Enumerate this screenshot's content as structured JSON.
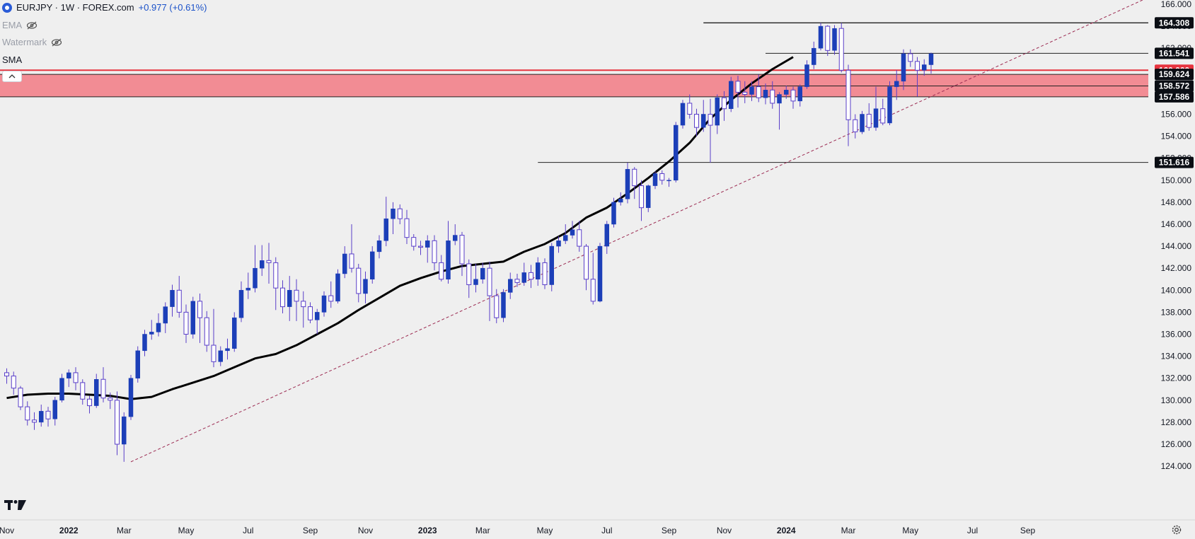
{
  "header": {
    "symbol": "EURJPY · 1W · FOREX.com",
    "change": "+0.977 (+0.61%)",
    "indicators": [
      {
        "label": "EMA"
      },
      {
        "label": "Watermark"
      },
      {
        "label": "SMA"
      }
    ]
  },
  "colors": {
    "background": "#efefef",
    "candle": "#1c3fb8",
    "zone": "#f28c94",
    "zone_label": "#e6343f",
    "sma": "#000000",
    "trendline": "#9c2b52",
    "label_bg": "#0b0e14"
  },
  "chart_data": {
    "type": "candlestick",
    "symbol": "EURJPY",
    "interval": "1W",
    "ylim": [
      123,
      166
    ],
    "y_ticks": [
      "124.000",
      "126.000",
      "128.000",
      "130.000",
      "132.000",
      "134.000",
      "136.000",
      "138.000",
      "140.000",
      "142.000",
      "144.000",
      "146.000",
      "148.000",
      "150.000",
      "152.000",
      "154.000",
      "156.000",
      "158.000",
      "160.000",
      "162.000",
      "164.000",
      "166.000"
    ],
    "x_ticks": [
      "Nov",
      "2022",
      "Mar",
      "May",
      "Jul",
      "Sep",
      "Nov",
      "2023",
      "Mar",
      "May",
      "Jul",
      "Sep",
      "Nov",
      "2024",
      "Mar",
      "May",
      "Jul",
      "Sep"
    ],
    "x_tick_weeks": [
      0,
      9,
      17,
      26,
      35,
      44,
      52,
      61,
      69,
      78,
      87,
      96,
      104,
      113,
      122,
      131,
      140,
      148
    ],
    "level_labels": [
      "164.308",
      "161.541",
      "160.000",
      "159.624",
      "158.572",
      "157.586",
      "151.616"
    ],
    "horizontal_levels": [
      {
        "price": 164.308,
        "from_week": 101
      },
      {
        "price": 161.541,
        "from_week": 110
      },
      {
        "price": 158.572,
        "from_week": 108
      },
      {
        "price": 151.616,
        "from_week": 77
      }
    ],
    "resistance_zone": {
      "from": 157.586,
      "to": 159.624,
      "line": 160.0
    },
    "trendline": {
      "points": [
        [
          18,
          124.4
        ],
        [
          69,
          139.0
        ]
      ],
      "style": "dashed"
    },
    "sma": [
      [
        0,
        130.2
      ],
      [
        3,
        130.5
      ],
      [
        6,
        130.6
      ],
      [
        9,
        130.6
      ],
      [
        12,
        130.5
      ],
      [
        15,
        130.4
      ],
      [
        18,
        130.1
      ],
      [
        21,
        130.3
      ],
      [
        24,
        131.0
      ],
      [
        27,
        131.6
      ],
      [
        30,
        132.2
      ],
      [
        33,
        133.0
      ],
      [
        36,
        133.8
      ],
      [
        39,
        134.2
      ],
      [
        42,
        135.0
      ],
      [
        45,
        136.0
      ],
      [
        48,
        137.0
      ],
      [
        51,
        138.2
      ],
      [
        54,
        139.3
      ],
      [
        57,
        140.4
      ],
      [
        60,
        141.1
      ],
      [
        63,
        141.7
      ],
      [
        66,
        142.2
      ],
      [
        69,
        142.4
      ],
      [
        72,
        142.6
      ],
      [
        75,
        143.5
      ],
      [
        78,
        144.2
      ],
      [
        81,
        145.2
      ],
      [
        84,
        146.6
      ],
      [
        87,
        147.5
      ],
      [
        90,
        148.8
      ],
      [
        93,
        150.2
      ],
      [
        96,
        151.7
      ],
      [
        99,
        153.4
      ],
      [
        102,
        155.6
      ],
      [
        105,
        157.3
      ],
      [
        108,
        158.8
      ],
      [
        111,
        160.1
      ],
      [
        114,
        161.2
      ]
    ],
    "candles": [
      [
        132.5,
        132.2,
        132.9,
        131.5
      ],
      [
        132.2,
        131.1,
        132.6,
        130.5
      ],
      [
        131.1,
        129.4,
        131.3,
        129.1
      ],
      [
        129.4,
        128.2,
        129.9,
        127.7
      ],
      [
        128.2,
        128.0,
        128.9,
        127.3
      ],
      [
        128.0,
        129.0,
        129.6,
        127.6
      ],
      [
        129.0,
        128.3,
        129.4,
        127.6
      ],
      [
        128.3,
        130.0,
        130.3,
        127.7
      ],
      [
        130.0,
        132.0,
        132.4,
        129.8
      ],
      [
        132.0,
        132.5,
        132.8,
        131.2
      ],
      [
        132.5,
        131.6,
        133.0,
        130.9
      ],
      [
        131.6,
        130.1,
        131.9,
        129.6
      ],
      [
        130.1,
        129.5,
        130.4,
        128.8
      ],
      [
        129.5,
        131.9,
        132.4,
        129.3
      ],
      [
        131.9,
        130.2,
        133.0,
        129.8
      ],
      [
        130.2,
        130.0,
        130.7,
        129.2
      ],
      [
        130.0,
        126.0,
        130.8,
        125.0
      ],
      [
        126.0,
        128.5,
        128.9,
        124.4
      ],
      [
        128.5,
        132.0,
        132.3,
        128.2
      ],
      [
        132.0,
        134.5,
        134.9,
        131.6
      ],
      [
        134.5,
        136.0,
        136.4,
        134.0
      ],
      [
        136.0,
        136.2,
        137.3,
        135.5
      ],
      [
        136.2,
        137.0,
        137.9,
        135.8
      ],
      [
        137.0,
        138.5,
        138.9,
        136.1
      ],
      [
        138.5,
        140.0,
        140.5,
        137.6
      ],
      [
        140.0,
        138.0,
        141.3,
        137.5
      ],
      [
        138.0,
        136.0,
        138.7,
        135.2
      ],
      [
        136.0,
        139.0,
        139.4,
        135.6
      ],
      [
        139.0,
        137.5,
        139.7,
        135.2
      ],
      [
        137.5,
        135.0,
        138.1,
        134.4
      ],
      [
        135.0,
        133.5,
        138.3,
        133.0
      ],
      [
        133.5,
        134.5,
        134.9,
        133.1
      ],
      [
        134.5,
        134.7,
        135.6,
        133.7
      ],
      [
        134.7,
        137.5,
        138.0,
        134.4
      ],
      [
        137.5,
        140.0,
        140.8,
        137.1
      ],
      [
        140.0,
        140.2,
        141.6,
        139.2
      ],
      [
        140.2,
        142.0,
        144.1,
        139.8
      ],
      [
        142.0,
        142.7,
        144.1,
        141.3
      ],
      [
        142.7,
        142.5,
        144.3,
        140.6
      ],
      [
        142.5,
        140.2,
        143.0,
        138.2
      ],
      [
        140.2,
        138.5,
        140.9,
        137.9
      ],
      [
        138.5,
        140.0,
        141.3,
        137.2
      ],
      [
        140.0,
        139.0,
        141.0,
        137.2
      ],
      [
        139.0,
        138.5,
        139.9,
        136.6
      ],
      [
        138.5,
        137.3,
        138.9,
        137.0
      ],
      [
        137.3,
        138.0,
        138.3,
        136.0
      ],
      [
        138.0,
        139.5,
        139.9,
        137.6
      ],
      [
        139.5,
        139.0,
        140.8,
        138.4
      ],
      [
        139.0,
        141.5,
        141.9,
        138.8
      ],
      [
        141.5,
        143.3,
        144.0,
        141.1
      ],
      [
        143.3,
        142.0,
        146.0,
        141.6
      ],
      [
        142.0,
        139.7,
        142.4,
        138.9
      ],
      [
        139.7,
        141.0,
        141.7,
        138.8
      ],
      [
        141.0,
        143.5,
        144.0,
        140.6
      ],
      [
        143.5,
        144.5,
        145.0,
        142.9
      ],
      [
        144.5,
        146.5,
        148.5,
        144.0
      ],
      [
        146.5,
        147.4,
        148.0,
        145.1
      ],
      [
        147.4,
        146.5,
        147.8,
        146.0
      ],
      [
        146.5,
        144.8,
        147.3,
        144.2
      ],
      [
        144.8,
        144.0,
        145.1,
        143.6
      ],
      [
        144.0,
        143.9,
        144.5,
        143.2
      ],
      [
        143.9,
        144.5,
        145.0,
        142.5
      ],
      [
        144.5,
        142.5,
        145.0,
        141.8
      ],
      [
        142.5,
        141.0,
        143.2,
        140.8
      ],
      [
        141.0,
        144.5,
        146.3,
        140.6
      ],
      [
        144.5,
        145.0,
        146.0,
        144.1
      ],
      [
        145.0,
        142.4,
        145.3,
        141.3
      ],
      [
        142.4,
        140.5,
        142.8,
        139.3
      ],
      [
        140.5,
        141.0,
        142.4,
        139.8
      ],
      [
        141.0,
        142.0,
        142.5,
        140.6
      ],
      [
        142.0,
        139.5,
        142.6,
        137.2
      ],
      [
        139.5,
        137.5,
        140.1,
        137.0
      ],
      [
        137.5,
        139.8,
        140.1,
        137.1
      ],
      [
        139.8,
        141.0,
        141.6,
        139.2
      ],
      [
        141.0,
        140.7,
        141.5,
        140.3
      ],
      [
        140.7,
        141.6,
        142.5,
        140.4
      ],
      [
        141.6,
        141.0,
        142.3,
        140.2
      ],
      [
        141.0,
        142.5,
        143.0,
        140.4
      ],
      [
        142.5,
        140.5,
        142.9,
        140.1
      ],
      [
        140.5,
        144.0,
        144.3,
        139.9
      ],
      [
        144.0,
        144.5,
        144.9,
        143.4
      ],
      [
        144.5,
        145.0,
        146.0,
        144.2
      ],
      [
        145.0,
        145.5,
        146.3,
        144.7
      ],
      [
        145.5,
        144.0,
        146.3,
        143.5
      ],
      [
        144.0,
        141.0,
        144.2,
        140.0
      ],
      [
        141.0,
        139.0,
        143.4,
        138.7
      ],
      [
        139.0,
        144.0,
        144.3,
        138.9
      ],
      [
        144.0,
        146.0,
        146.3,
        143.3
      ],
      [
        146.0,
        148.0,
        148.4,
        145.7
      ],
      [
        148.0,
        148.3,
        148.9,
        147.7
      ],
      [
        148.3,
        151.0,
        151.6,
        147.9
      ],
      [
        151.0,
        149.5,
        151.2,
        148.3
      ],
      [
        149.5,
        147.5,
        150.0,
        146.3
      ],
      [
        147.5,
        149.5,
        149.6,
        147.1
      ],
      [
        149.5,
        150.6,
        150.8,
        149.2
      ],
      [
        150.6,
        150.0,
        150.9,
        149.6
      ],
      [
        150.0,
        150.0,
        150.2,
        149.4
      ],
      [
        150.0,
        155.0,
        155.3,
        149.8
      ],
      [
        155.0,
        157.0,
        157.3,
        154.7
      ],
      [
        157.0,
        156.0,
        157.8,
        155.6
      ],
      [
        156.0,
        154.8,
        156.5,
        154.0
      ],
      [
        154.8,
        156.0,
        157.3,
        154.4
      ],
      [
        156.0,
        155.0,
        157.4,
        151.6
      ],
      [
        155.0,
        157.5,
        157.8,
        154.2
      ],
      [
        157.5,
        156.5,
        158.1,
        155.4
      ],
      [
        156.5,
        159.0,
        159.4,
        156.2
      ],
      [
        159.0,
        158.0,
        159.5,
        156.6
      ],
      [
        158.0,
        157.8,
        159.0,
        157.0
      ],
      [
        157.8,
        158.5,
        159.0,
        157.2
      ],
      [
        158.5,
        157.5,
        159.6,
        157.1
      ],
      [
        157.5,
        158.2,
        158.8,
        156.9
      ],
      [
        158.2,
        157.0,
        159.0,
        156.5
      ],
      [
        157.0,
        157.8,
        158.0,
        154.6
      ],
      [
        157.8,
        158.2,
        158.6,
        157.4
      ],
      [
        158.2,
        157.2,
        158.5,
        156.5
      ],
      [
        157.2,
        158.5,
        158.7,
        156.7
      ],
      [
        158.5,
        160.5,
        160.9,
        158.3
      ],
      [
        160.5,
        162.0,
        162.6,
        160.1
      ],
      [
        162.0,
        164.0,
        164.3,
        161.8
      ],
      [
        164.0,
        161.8,
        164.1,
        161.3
      ],
      [
        161.8,
        163.8,
        164.1,
        161.4
      ],
      [
        163.8,
        160.0,
        164.3,
        159.8
      ],
      [
        160.0,
        155.5,
        160.5,
        153.1
      ],
      [
        155.5,
        154.4,
        156.0,
        153.8
      ],
      [
        154.4,
        156.0,
        156.3,
        154.2
      ],
      [
        156.0,
        154.8,
        157.0,
        154.5
      ],
      [
        154.8,
        156.5,
        158.5,
        154.5
      ],
      [
        156.5,
        155.2,
        157.4,
        155.0
      ],
      [
        155.2,
        158.5,
        159.0,
        155.0
      ],
      [
        158.5,
        159.0,
        160.0,
        157.3
      ],
      [
        159.0,
        161.5,
        161.9,
        158.2
      ],
      [
        161.5,
        160.8,
        161.9,
        160.3
      ],
      [
        160.8,
        160.0,
        161.2,
        157.6
      ],
      [
        160.0,
        160.5,
        161.0,
        159.5
      ],
      [
        160.5,
        161.5,
        161.6,
        159.7
      ]
    ]
  }
}
